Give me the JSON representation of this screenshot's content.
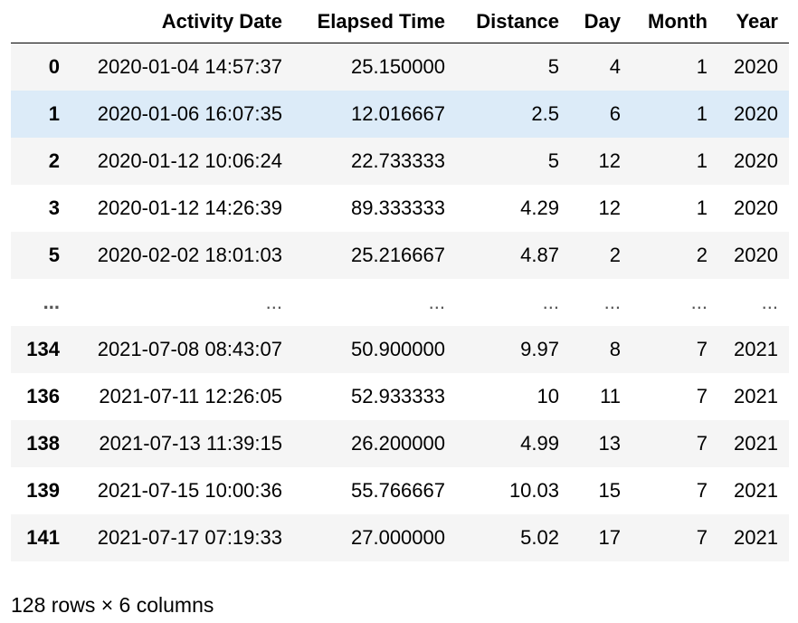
{
  "columns": [
    "",
    "Activity Date",
    "Elapsed Time",
    "Distance",
    "Day",
    "Month",
    "Year"
  ],
  "rows": [
    {
      "index": "0",
      "activity_date": "2020-01-04 14:57:37",
      "elapsed_time": "25.150000",
      "distance": "5",
      "day": "4",
      "month": "1",
      "year": "2020"
    },
    {
      "index": "1",
      "activity_date": "2020-01-06 16:07:35",
      "elapsed_time": "12.016667",
      "distance": "2.5",
      "day": "6",
      "month": "1",
      "year": "2020"
    },
    {
      "index": "2",
      "activity_date": "2020-01-12 10:06:24",
      "elapsed_time": "22.733333",
      "distance": "5",
      "day": "12",
      "month": "1",
      "year": "2020"
    },
    {
      "index": "3",
      "activity_date": "2020-01-12 14:26:39",
      "elapsed_time": "89.333333",
      "distance": "4.29",
      "day": "12",
      "month": "1",
      "year": "2020"
    },
    {
      "index": "5",
      "activity_date": "2020-02-02 18:01:03",
      "elapsed_time": "25.216667",
      "distance": "4.87",
      "day": "2",
      "month": "2",
      "year": "2020"
    },
    {
      "index": "...",
      "activity_date": "...",
      "elapsed_time": "...",
      "distance": "...",
      "day": "...",
      "month": "...",
      "year": "..."
    },
    {
      "index": "134",
      "activity_date": "2021-07-08 08:43:07",
      "elapsed_time": "50.900000",
      "distance": "9.97",
      "day": "8",
      "month": "7",
      "year": "2021"
    },
    {
      "index": "136",
      "activity_date": "2021-07-11 12:26:05",
      "elapsed_time": "52.933333",
      "distance": "10",
      "day": "11",
      "month": "7",
      "year": "2021"
    },
    {
      "index": "138",
      "activity_date": "2021-07-13 11:39:15",
      "elapsed_time": "26.200000",
      "distance": "4.99",
      "day": "13",
      "month": "7",
      "year": "2021"
    },
    {
      "index": "139",
      "activity_date": "2021-07-15 10:00:36",
      "elapsed_time": "55.766667",
      "distance": "10.03",
      "day": "15",
      "month": "7",
      "year": "2021"
    },
    {
      "index": "141",
      "activity_date": "2021-07-17 07:19:33",
      "elapsed_time": "27.000000",
      "distance": "5.02",
      "day": "17",
      "month": "7",
      "year": "2021"
    }
  ],
  "hovered_row": 1,
  "footer": "128 rows × 6 columns"
}
